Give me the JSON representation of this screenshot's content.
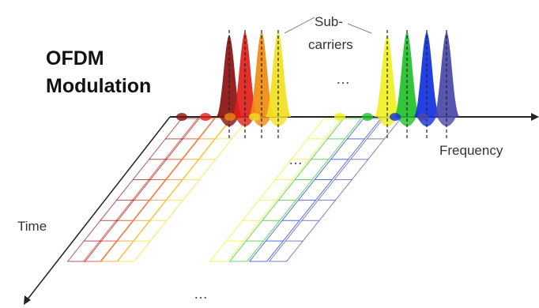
{
  "title": {
    "lines": [
      "OFDM",
      "Modulation"
    ]
  },
  "labels": {
    "subcarriers": [
      "Sub-",
      "carriers"
    ],
    "frequency": "Frequency",
    "time": "Time"
  },
  "ellipses": [
    "…",
    "…",
    "…"
  ]
}
